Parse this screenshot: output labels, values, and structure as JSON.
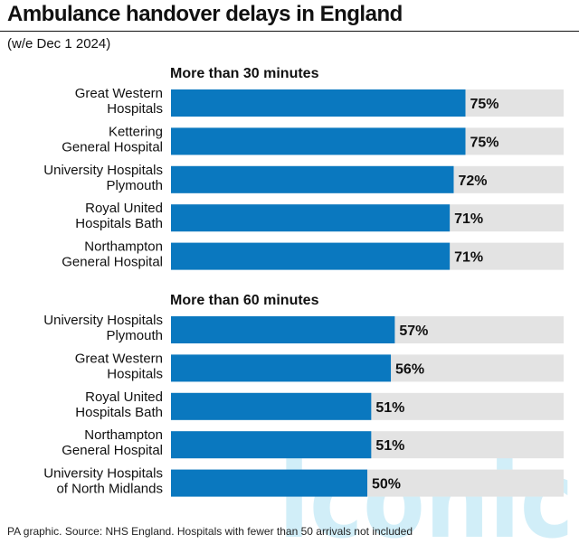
{
  "title": "Ambulance handover delays in England",
  "subtitle": "(w/e Dec 1 2024)",
  "footer": "PA graphic. Source: NHS England. Hospitals with fewer than 50 arrivals not included",
  "colors": {
    "bar": "#0a78bf",
    "track": "#e3e3e3",
    "text": "#111111",
    "watermark": "#5bc2e7"
  },
  "watermark_text": "iconic",
  "chart_data": {
    "type": "bar",
    "orientation": "horizontal",
    "xlim": [
      0,
      100
    ],
    "value_suffix": "%",
    "panels": [
      {
        "heading": "More than 30 minutes",
        "categories": [
          [
            "Great Western",
            "Hospitals"
          ],
          [
            "Kettering",
            "General Hospital"
          ],
          [
            "University Hospitals",
            "Plymouth"
          ],
          [
            "Royal United",
            "Hospitals Bath"
          ],
          [
            "Northampton",
            "General Hospital"
          ]
        ],
        "values": [
          75,
          75,
          72,
          71,
          71
        ]
      },
      {
        "heading": "More than 60 minutes",
        "categories": [
          [
            "University Hospitals",
            "Plymouth"
          ],
          [
            "Great Western",
            "Hospitals"
          ],
          [
            "Royal United",
            "Hospitals Bath"
          ],
          [
            "Northampton",
            "General Hospital"
          ],
          [
            "University Hospitals",
            "of North Midlands"
          ]
        ],
        "values": [
          57,
          56,
          51,
          51,
          50
        ]
      }
    ]
  }
}
